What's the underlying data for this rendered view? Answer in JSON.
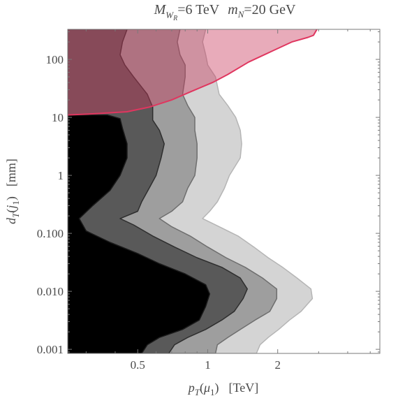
{
  "chart_data": {
    "type": "area",
    "title": {
      "mw_symbol": "M",
      "mw_sub": "W",
      "mw_subsub": "R",
      "mw_value": "=6 TeV",
      "mn_symbol": "m",
      "mn_sub": "N",
      "mn_value": "=20 GeV"
    },
    "xlabel": {
      "symbol": "p",
      "sub": "T",
      "arg_open": "(",
      "arg": "μ",
      "arg_sub": "1",
      "arg_close": ")",
      "unit": "[TeV]"
    },
    "ylabel": {
      "symbol": "d",
      "sub": "T",
      "arg_open": "(",
      "arg": "j",
      "arg_sub": "1",
      "arg_close": ")",
      "unit": "[mm]"
    },
    "x_scale": "log",
    "y_scale": "log",
    "xlim": [
      0.25,
      5.5
    ],
    "ylim": [
      0.00085,
      330
    ],
    "x_ticks": [
      {
        "value": 0.5,
        "label": "0.5"
      },
      {
        "value": 1,
        "label": "1"
      },
      {
        "value": 2,
        "label": "2"
      }
    ],
    "y_ticks": [
      {
        "value": 0.001,
        "label": "0.001"
      },
      {
        "value": 0.01,
        "label": "0.010"
      },
      {
        "value": 0.1,
        "label": "0.100"
      },
      {
        "value": 1,
        "label": "1"
      },
      {
        "value": 10,
        "label": "10"
      },
      {
        "value": 100,
        "label": "100"
      }
    ],
    "colors": {
      "band_1": "#000000",
      "band_2": "#595959",
      "band_3": "#9e9e9e",
      "band_4": "#d4d4d4",
      "band_1_edge": "#1a1a1a",
      "band_2_edge": "#2e2e2e",
      "band_3_edge": "#6e6e6e",
      "band_4_edge": "#b5b5b5",
      "red_region": "#c8385a",
      "red_line": "#e0365f",
      "frame": "#7a7a7a"
    },
    "series": [
      {
        "points": [
          [
            0.25,
            0.00085
          ],
          [
            0.52,
            0.00085
          ],
          [
            0.55,
            0.0012
          ],
          [
            0.62,
            0.0016
          ],
          [
            0.78,
            0.0022
          ],
          [
            0.92,
            0.0032
          ],
          [
            0.98,
            0.0055
          ],
          [
            1.02,
            0.009
          ],
          [
            0.98,
            0.013
          ],
          [
            0.8,
            0.02
          ],
          [
            0.62,
            0.03
          ],
          [
            0.5,
            0.045
          ],
          [
            0.38,
            0.07
          ],
          [
            0.3,
            0.11
          ],
          [
            0.28,
            0.18
          ],
          [
            0.32,
            0.3
          ],
          [
            0.38,
            0.55
          ],
          [
            0.42,
            1.0
          ],
          [
            0.45,
            2.0
          ],
          [
            0.45,
            3.5
          ],
          [
            0.43,
            6.5
          ],
          [
            0.42,
            9.5
          ],
          [
            0.37,
            11.0
          ],
          [
            0.25,
            11.0
          ]
        ]
      },
      {
        "points": [
          [
            0.25,
            0.00085
          ],
          [
            0.68,
            0.00085
          ],
          [
            0.72,
            0.0012
          ],
          [
            0.82,
            0.0016
          ],
          [
            0.98,
            0.0022
          ],
          [
            1.15,
            0.0032
          ],
          [
            1.3,
            0.0045
          ],
          [
            1.42,
            0.0075
          ],
          [
            1.48,
            0.011
          ],
          [
            1.38,
            0.017
          ],
          [
            1.15,
            0.026
          ],
          [
            0.9,
            0.038
          ],
          [
            0.72,
            0.058
          ],
          [
            0.58,
            0.09
          ],
          [
            0.48,
            0.14
          ],
          [
            0.42,
            0.18
          ],
          [
            0.5,
            0.24
          ],
          [
            0.52,
            0.35
          ],
          [
            0.56,
            0.6
          ],
          [
            0.6,
            1.0
          ],
          [
            0.63,
            2.0
          ],
          [
            0.65,
            3.5
          ],
          [
            0.62,
            6.0
          ],
          [
            0.58,
            9.0
          ],
          [
            0.58,
            15.0
          ],
          [
            0.55,
            25.0
          ],
          [
            0.48,
            50.0
          ],
          [
            0.44,
            80.0
          ],
          [
            0.42,
            120.0
          ],
          [
            0.43,
            200.0
          ],
          [
            0.45,
            330.0
          ],
          [
            0.25,
            330.0
          ]
        ]
      },
      {
        "points": [
          [
            0.25,
            0.00085
          ],
          [
            1.08,
            0.00085
          ],
          [
            1.1,
            0.0012
          ],
          [
            1.22,
            0.0016
          ],
          [
            1.38,
            0.0022
          ],
          [
            1.6,
            0.0032
          ],
          [
            1.85,
            0.0045
          ],
          [
            1.98,
            0.0075
          ],
          [
            1.98,
            0.011
          ],
          [
            1.72,
            0.017
          ],
          [
            1.45,
            0.026
          ],
          [
            1.2,
            0.038
          ],
          [
            1.0,
            0.058
          ],
          [
            0.84,
            0.09
          ],
          [
            0.7,
            0.13
          ],
          [
            0.62,
            0.18
          ],
          [
            0.7,
            0.24
          ],
          [
            0.78,
            0.35
          ],
          [
            0.82,
            0.6
          ],
          [
            0.88,
            1.0
          ],
          [
            0.9,
            2.0
          ],
          [
            0.9,
            3.5
          ],
          [
            0.88,
            6.0
          ],
          [
            0.88,
            10.0
          ],
          [
            0.82,
            16.0
          ],
          [
            0.78,
            25.0
          ],
          [
            0.8,
            50.0
          ],
          [
            0.8,
            80.0
          ],
          [
            0.76,
            120.0
          ],
          [
            0.74,
            200.0
          ],
          [
            0.76,
            330.0
          ],
          [
            0.25,
            330.0
          ]
        ]
      },
      {
        "points": [
          [
            0.25,
            0.00085
          ],
          [
            1.62,
            0.00085
          ],
          [
            1.68,
            0.0012
          ],
          [
            1.82,
            0.0016
          ],
          [
            2.02,
            0.0022
          ],
          [
            2.25,
            0.0032
          ],
          [
            2.52,
            0.0045
          ],
          [
            2.82,
            0.0075
          ],
          [
            2.78,
            0.011
          ],
          [
            2.42,
            0.017
          ],
          [
            2.1,
            0.026
          ],
          [
            1.82,
            0.038
          ],
          [
            1.58,
            0.058
          ],
          [
            1.35,
            0.09
          ],
          [
            1.12,
            0.13
          ],
          [
            0.95,
            0.18
          ],
          [
            1.02,
            0.24
          ],
          [
            1.1,
            0.35
          ],
          [
            1.18,
            0.6
          ],
          [
            1.24,
            1.0
          ],
          [
            1.38,
            2.0
          ],
          [
            1.4,
            3.5
          ],
          [
            1.38,
            6.0
          ],
          [
            1.32,
            10.0
          ],
          [
            1.22,
            16.0
          ],
          [
            1.12,
            25.0
          ],
          [
            1.08,
            50.0
          ],
          [
            1.0,
            80.0
          ],
          [
            0.98,
            120.0
          ],
          [
            0.95,
            200.0
          ],
          [
            0.98,
            330.0
          ],
          [
            0.25,
            330.0
          ]
        ]
      },
      {
        "points": [
          [
            0.25,
            11.0
          ],
          [
            0.32,
            11.5
          ],
          [
            0.45,
            12.5
          ],
          [
            0.56,
            15.0
          ],
          [
            0.7,
            20.0
          ],
          [
            0.85,
            28.0
          ],
          [
            1.05,
            40.0
          ],
          [
            1.22,
            55.0
          ],
          [
            1.5,
            90.0
          ],
          [
            1.9,
            140.0
          ],
          [
            2.3,
            200.0
          ],
          [
            2.7,
            240.0
          ],
          [
            2.85,
            260.0
          ],
          [
            2.95,
            330.0
          ],
          [
            0.25,
            330.0
          ]
        ]
      }
    ],
    "red_boundary": [
      [
        0.25,
        11.0
      ],
      [
        0.32,
        11.5
      ],
      [
        0.45,
        12.5
      ],
      [
        0.56,
        15.0
      ],
      [
        0.7,
        20.0
      ],
      [
        0.85,
        28.0
      ],
      [
        1.05,
        40.0
      ],
      [
        1.22,
        55.0
      ],
      [
        1.5,
        90.0
      ],
      [
        1.9,
        140.0
      ],
      [
        2.3,
        200.0
      ],
      [
        2.7,
        240.0
      ],
      [
        2.85,
        260.0
      ],
      [
        2.95,
        330.0
      ]
    ]
  }
}
